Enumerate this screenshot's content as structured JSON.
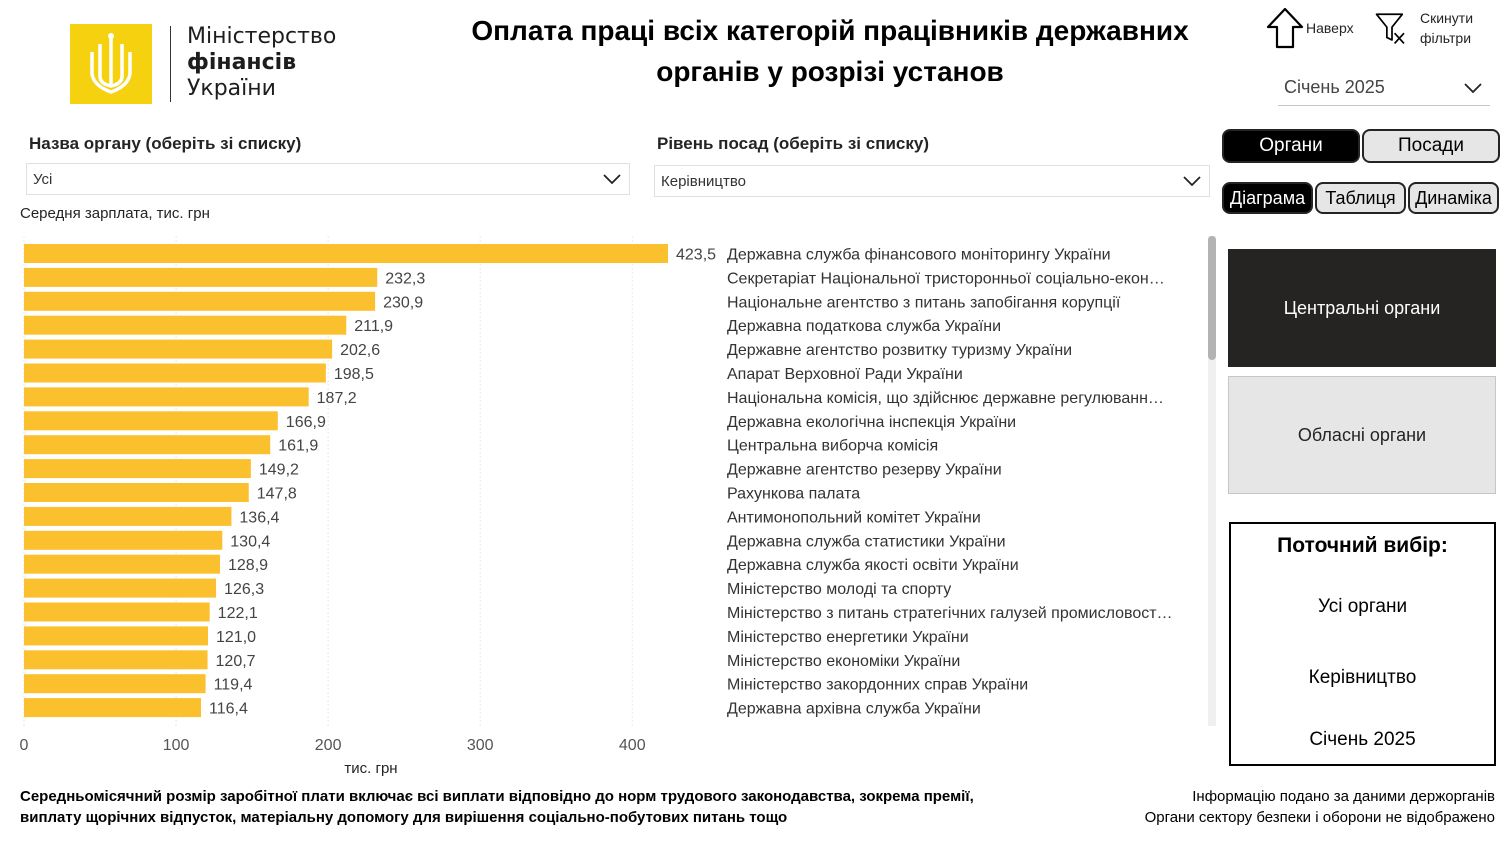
{
  "logo": {
    "line1": "Міністерство",
    "line2": "фінансів",
    "line3": "України"
  },
  "title": {
    "line1": "Оплата праці всіх категорій працівників державних",
    "line2": "органів у розрізі установ"
  },
  "nav": {
    "up_label": "Наверх",
    "reset_line1": "Скинути",
    "reset_line2": "фільтри"
  },
  "month": {
    "selected": "Січень 2025"
  },
  "filters": {
    "body_title": "Назва органу (оберіть зі списку)",
    "body_value": "Усі",
    "level_title": "Рівень посад (оберіть зі списку)",
    "level_value": "Керівництво"
  },
  "toggles": {
    "organs": "Органи",
    "positions": "Посади",
    "diagram": "Діаграма",
    "table": "Таблиця",
    "dynamics": "Динаміка"
  },
  "tiles": {
    "central": "Центральні органи",
    "regional": "Обласні органи"
  },
  "current": {
    "heading": "Поточний вибір:",
    "organs": "Усі органи",
    "level": "Керівництво",
    "month": "Січень 2025"
  },
  "footnote": {
    "line1": "Середньомісячний розмір заробітної плати включає всі виплати відповідно до норм трудового законодавства, зокрема премії,",
    "line2": "виплату щорічних відпусток, матеріальну допомогу для вирішення соціально-побутових питань тощо"
  },
  "info": {
    "line1": "Інформацію подано за даними держорганів",
    "line2": "Органи сектору безпеки і оборони не відображено"
  },
  "colors": {
    "bar": "#fbc02d",
    "accent_dark": "#252423",
    "logo": "#f5d10f"
  },
  "icons": {
    "up": "arrow-up-icon",
    "reset": "filter-clear-icon",
    "dropdown": "chevron-down-icon"
  },
  "chart_data": {
    "type": "bar",
    "orientation": "horizontal",
    "ylabel": "Середня зарплата, тис. грн",
    "xlabel": "тис. грн",
    "xlim": [
      0,
      423.5
    ],
    "xticks": [
      0,
      100,
      200,
      300,
      400
    ],
    "grid": true,
    "categories": [
      "Державна служба фінансового моніторингу України",
      "Секретаріат Національної тристоронньої соціально-екон…",
      "Національне агентство з питань запобігання корупції",
      "Державна податкова служба України",
      "Державне агентство розвитку туризму України",
      "Апарат Верховної Ради України",
      "Національна комісія, що здійснює державне регулюванн…",
      "Державна екологічна інспекція України",
      "Центральна виборча комісія",
      "Державне агентство резерву України",
      "Рахункова палата",
      "Антимонопольний комітет України",
      "Державна служба статистики України",
      "Державна служба якості освіти України",
      "Міністерство молоді та спорту",
      "Міністерство з питань стратегічних галузей промисловост…",
      "Міністерство енергетики України",
      "Міністерство економіки України",
      "Міністерство закордонних справ України",
      "Державна архівна служба України"
    ],
    "values": [
      423.5,
      232.3,
      230.9,
      211.9,
      202.6,
      198.5,
      187.2,
      166.9,
      161.9,
      149.2,
      147.8,
      136.4,
      130.4,
      128.9,
      126.3,
      122.1,
      121.0,
      120.7,
      119.4,
      116.4
    ],
    "value_labels": [
      "423,5",
      "232,3",
      "230,9",
      "211,9",
      "202,6",
      "198,5",
      "187,2",
      "166,9",
      "161,9",
      "149,2",
      "147,8",
      "136,4",
      "130,4",
      "128,9",
      "126,3",
      "122,1",
      "121,0",
      "120,7",
      "119,4",
      "116,4"
    ]
  }
}
